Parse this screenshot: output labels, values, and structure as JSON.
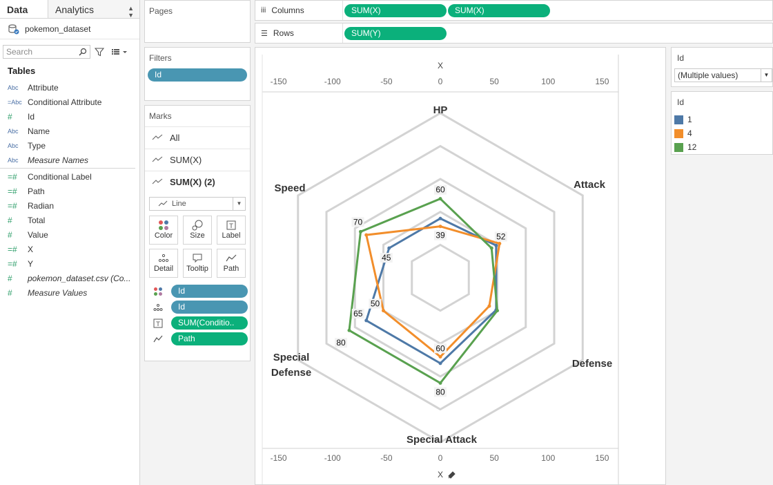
{
  "tabs": {
    "data": "Data",
    "analytics": "Analytics"
  },
  "datasource": "pokemon_dataset",
  "search": {
    "placeholder": "Search"
  },
  "tables": {
    "title": "Tables",
    "dimensions": [
      {
        "type": "Abc",
        "name": "Attribute",
        "italic": false
      },
      {
        "type": "=Abc",
        "name": "Conditional Attribute",
        "italic": false
      },
      {
        "type": "#",
        "name": "Id",
        "italic": false
      },
      {
        "type": "Abc",
        "name": "Name",
        "italic": false
      },
      {
        "type": "Abc",
        "name": "Type",
        "italic": false
      },
      {
        "type": "Abc",
        "name": "Measure Names",
        "italic": true
      }
    ],
    "measures": [
      {
        "type": "=#",
        "name": "Conditional Label",
        "italic": false
      },
      {
        "type": "=#",
        "name": "Path",
        "italic": false
      },
      {
        "type": "=#",
        "name": "Radian",
        "italic": false
      },
      {
        "type": "#",
        "name": "Total",
        "italic": false
      },
      {
        "type": "#",
        "name": "Value",
        "italic": false
      },
      {
        "type": "=#",
        "name": "X",
        "italic": false
      },
      {
        "type": "=#",
        "name": "Y",
        "italic": false
      },
      {
        "type": "#",
        "name": "pokemon_dataset.csv (Co...",
        "italic": true
      },
      {
        "type": "#",
        "name": "Measure Values",
        "italic": true
      }
    ]
  },
  "pages": {
    "title": "Pages"
  },
  "filters": {
    "title": "Filters",
    "pill": "Id"
  },
  "marks": {
    "title": "Marks",
    "rows": [
      {
        "label": "All",
        "bold": false
      },
      {
        "label": "SUM(X)",
        "bold": false
      },
      {
        "label": "SUM(X) (2)",
        "bold": true
      }
    ],
    "mark_type": "Line",
    "buttons": [
      "Color",
      "Size",
      "Label",
      "Detail",
      "Tooltip",
      "Path"
    ],
    "encodings": [
      {
        "icon": "color-encoding-icon",
        "pill": "Id",
        "color": "blue"
      },
      {
        "icon": "detail-encoding-icon",
        "pill": "Id",
        "color": "blue"
      },
      {
        "icon": "label-encoding-icon",
        "pill": "SUM(Conditio..",
        "color": "green"
      },
      {
        "icon": "path-encoding-icon",
        "pill": "Path",
        "color": "green"
      }
    ]
  },
  "shelves": {
    "columns": {
      "label": "Columns",
      "pills": [
        "SUM(X)",
        "SUM(X)"
      ]
    },
    "rows": {
      "label": "Rows",
      "pills": [
        "SUM(Y)"
      ]
    }
  },
  "right": {
    "filter_title": "Id",
    "filter_value": "(Multiple values)",
    "legend_title": "Id",
    "legend": [
      {
        "label": "1",
        "color": "#4e79a7"
      },
      {
        "label": "4",
        "color": "#f28e2b"
      },
      {
        "label": "12",
        "color": "#59a14f"
      }
    ]
  },
  "chart_data": {
    "type": "radar",
    "x_axis_title": "X",
    "x_ticks": [
      -150,
      -100,
      -50,
      0,
      50,
      100,
      150
    ],
    "categories": [
      "HP",
      "Attack",
      "Defense",
      "Special Attack",
      "Special Defense",
      "Speed"
    ],
    "grid_levels": [
      25,
      50,
      75,
      100,
      125
    ],
    "series": [
      {
        "name": "1",
        "color": "#4e79a7",
        "values": [
          45,
          49,
          49,
          65,
          65,
          45
        ]
      },
      {
        "name": "4",
        "color": "#f28e2b",
        "values": [
          39,
          52,
          43,
          60,
          50,
          65
        ]
      },
      {
        "name": "12",
        "color": "#59a14f",
        "values": [
          60,
          45,
          50,
          80,
          80,
          70
        ]
      }
    ],
    "data_labels": [
      {
        "text": "60",
        "series": "12",
        "axis": 0
      },
      {
        "text": "39",
        "series": "4",
        "axis": 0
      },
      {
        "text": "52",
        "series": "4",
        "axis": 1
      },
      {
        "text": "60",
        "series": "4",
        "axis": 3
      },
      {
        "text": "80",
        "series": "12",
        "axis": 3
      },
      {
        "text": "50",
        "series": "4",
        "axis": 4
      },
      {
        "text": "65",
        "series": "1",
        "axis": 4
      },
      {
        "text": "80",
        "series": "12",
        "axis": 4
      },
      {
        "text": "45",
        "series": "1",
        "axis": 5
      },
      {
        "text": "70",
        "series": "12",
        "axis": 5
      }
    ]
  }
}
